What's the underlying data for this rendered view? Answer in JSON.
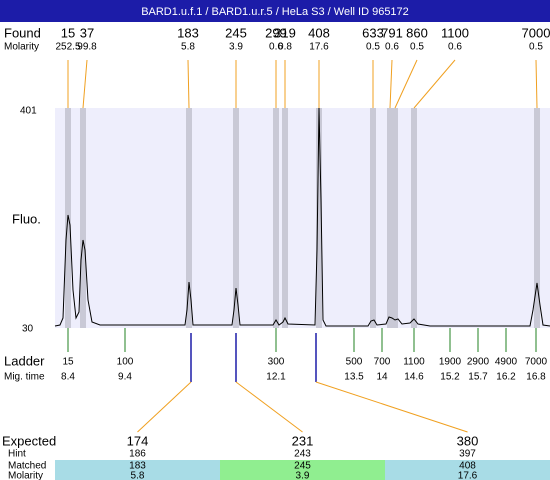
{
  "header": {
    "title": "BARD1.u.f.1 / BARD1.u.r.5 / HeLa S3 / Well ID 965172"
  },
  "found": {
    "label": "Found",
    "sizes": [
      "15",
      "37",
      "183",
      "245",
      "299",
      "319",
      "408",
      "633",
      "791",
      "860",
      "1100",
      "7000"
    ],
    "molarity_label": "Molarity",
    "molarities": [
      "252.5",
      "99.8",
      "5.8",
      "3.9",
      "0.6",
      "0.8",
      "17.6",
      "0.5",
      "0.6",
      "0.5",
      "0.6",
      "0.5"
    ]
  },
  "plot": {
    "y_top": "401",
    "y_bottom": "30",
    "y_label": "Fluo."
  },
  "ladder": {
    "label": "Ladder",
    "sizes": [
      "15",
      "100",
      "300",
      "500",
      "700",
      "1100",
      "1900",
      "2900",
      "4900",
      "7000"
    ],
    "time_label": "Mig. time",
    "times": [
      "8.4",
      "9.4",
      "12.1",
      "13.5",
      "14",
      "14.6",
      "15.2",
      "15.7",
      "16.2",
      "16.8"
    ]
  },
  "expected": {
    "labels": [
      "Expected",
      "Hint",
      "Matched",
      "Molarity"
    ],
    "columns": [
      [
        "174",
        "186",
        "183",
        "5.8"
      ],
      [
        "231",
        "243",
        "245",
        "3.9"
      ],
      [
        "380",
        "397",
        "408",
        "17.6"
      ]
    ]
  }
}
